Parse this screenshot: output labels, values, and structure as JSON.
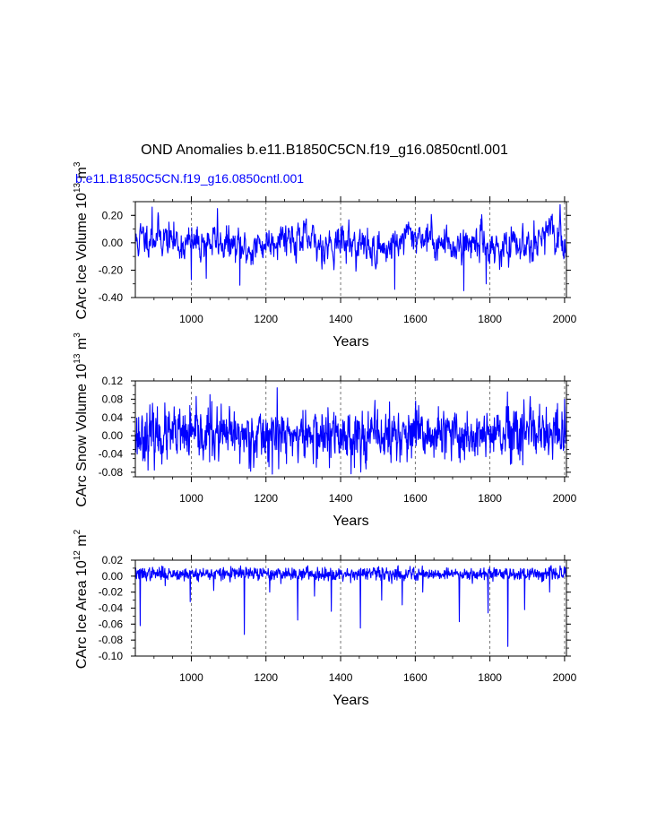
{
  "figure": {
    "title": "OND Anomalies b.e11.B1850C5CN.f19_g16.0850cntl.001",
    "series_label": "b.e11.B1850C5CN.f19_g16.0850cntl.001",
    "line_color": "#0000ff",
    "axis_color": "#000000",
    "grid_color": "#555555"
  },
  "chart_data": [
    {
      "type": "line",
      "id": "ice-volume",
      "xlabel": "Years",
      "ylabel": "CArc Ice Volume 10",
      "ylabel_exp1": "13",
      "ylabel_mid": " m",
      "ylabel_exp2": "3",
      "xlim": [
        850,
        2005
      ],
      "ylim": [
        -0.4,
        0.3
      ],
      "xticks": [
        1000,
        1200,
        1400,
        1600,
        1800,
        2000
      ],
      "yticks": [
        -0.4,
        -0.2,
        0.0,
        0.2
      ],
      "ytick_labels": [
        "-0.40",
        "-0.20",
        "0.00",
        "0.20"
      ],
      "vgrid": [
        1000,
        1200,
        1400,
        1600,
        1800,
        2000
      ],
      "series": [
        {
          "name": "b.e11.B1850C5CN.f19_g16.0850cntl.001",
          "x_start": 850,
          "x_end": 2005,
          "seed": 11,
          "sigma": 0.055,
          "ar": 0.55,
          "wave_amp": 0.06,
          "spikes": [
            [
              1000,
              -0.27
            ],
            [
              1040,
              -0.26
            ],
            [
              1130,
              -0.31
            ],
            [
              1545,
              -0.34
            ],
            [
              1730,
              -0.35
            ],
            [
              1790,
              -0.3
            ],
            [
              1070,
              0.25
            ],
            [
              895,
              0.26
            ]
          ]
        }
      ]
    },
    {
      "type": "line",
      "id": "snow-volume",
      "xlabel": "Years",
      "ylabel": "CArc Snow Volume 10",
      "ylabel_exp1": "13",
      "ylabel_mid": " m",
      "ylabel_exp2": "3",
      "xlim": [
        850,
        2005
      ],
      "ylim": [
        -0.09,
        0.12
      ],
      "xticks": [
        1000,
        1200,
        1400,
        1600,
        1800,
        2000
      ],
      "yticks": [
        -0.08,
        -0.04,
        0.0,
        0.04,
        0.08,
        0.12
      ],
      "ytick_labels": [
        "-0.08",
        "-0.04",
        "0.00",
        "0.04",
        "0.08",
        "0.12"
      ],
      "vgrid": [
        1000,
        1200,
        1400,
        1600,
        1800,
        2000
      ],
      "series": [
        {
          "name": "b.e11.B1850C5CN.f19_g16.0850cntl.001",
          "x_start": 850,
          "x_end": 2005,
          "seed": 23,
          "sigma": 0.028,
          "ar": 0.2,
          "wave_amp": 0.0,
          "spikes": [
            [
              1230,
              0.105
            ],
            [
              1370,
              -0.07
            ],
            [
              1050,
              0.09
            ],
            [
              2000,
              0.08
            ]
          ]
        }
      ]
    },
    {
      "type": "line",
      "id": "ice-area",
      "xlabel": "Years",
      "ylabel": "CArc Ice Area 10",
      "ylabel_exp1": "12",
      "ylabel_mid": " m",
      "ylabel_exp2": "2",
      "xlim": [
        850,
        2005
      ],
      "ylim": [
        -0.1,
        0.02
      ],
      "xticks": [
        1000,
        1200,
        1400,
        1600,
        1800,
        2000
      ],
      "yticks": [
        -0.1,
        -0.08,
        -0.06,
        -0.04,
        -0.02,
        0.0,
        0.02
      ],
      "ytick_labels": [
        "-0.10",
        "-0.08",
        "-0.06",
        "-0.04",
        "-0.02",
        "0.00",
        "0.02"
      ],
      "vgrid": [
        1000,
        1200,
        1400,
        1600,
        1800,
        2000
      ],
      "series": [
        {
          "name": "b.e11.B1850C5CN.f19_g16.0850cntl.001",
          "x_start": 850,
          "x_end": 2005,
          "seed": 37,
          "sigma": 0.004,
          "ar": 0.1,
          "wave_amp": 0.0,
          "base": 0.003,
          "spikes": [
            [
              863,
              -0.062
            ],
            [
              997,
              -0.032
            ],
            [
              1142,
              -0.073
            ],
            [
              1285,
              -0.055
            ],
            [
              1375,
              -0.044
            ],
            [
              1453,
              -0.065
            ],
            [
              1565,
              -0.036
            ],
            [
              1718,
              -0.057
            ],
            [
              1795,
              -0.046
            ],
            [
              1848,
              -0.088
            ],
            [
              1893,
              -0.042
            ],
            [
              930,
              -0.012
            ],
            [
              1060,
              -0.018
            ],
            [
              1210,
              -0.02
            ],
            [
              1330,
              -0.025
            ],
            [
              1510,
              -0.03
            ],
            [
              1620,
              -0.02
            ],
            [
              1960,
              -0.02
            ]
          ]
        }
      ]
    }
  ]
}
